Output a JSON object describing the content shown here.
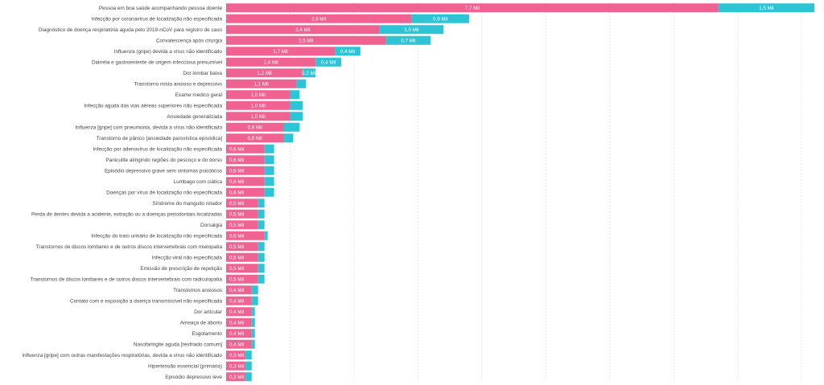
{
  "colors": {
    "series1": "#f06292",
    "series2": "#2ec4d6",
    "grid": "#e8e8e8",
    "label": "#444444"
  },
  "chart_data": {
    "type": "bar",
    "orientation": "horizontal",
    "stacked": true,
    "title": "",
    "xlabel": "",
    "ylabel": "",
    "grid": true,
    "xlim": [
      0,
      9.2
    ],
    "categories": [
      "Pessoa em boa saúde acompanhando pessoa doente",
      "Infecção por coronavírus de localização não especificada",
      "Diagnóstico de doença respiratória aguda pelo 2019-nCoV para registro de caso",
      "Convalescença após cirurgia",
      "Influenza (gripe) devida a vírus não identificado",
      "Diarréia e gastroenterite de origem infecciosa presumível",
      "Dor lombar baixa",
      "Transtorno misto ansioso e depressivo",
      "Exame médico geral",
      "Infecção aguda das vias aéreas superiores não especificada",
      "Ansiedade generalizada",
      "Influenza [gripe] com pneumonia, devida a vírus não identificado",
      "Transtorno de pânico [ansiedade paroxística episódica]",
      "Infecção por adenovírus de localização não especificada",
      "Paniculite atingindo regiões do pescoço e do dorso",
      "Episódio depressivo grave sem sintomas psicóticos",
      "Lumbago com ciática",
      "Doenças por vírus de localização não especificada",
      "Síndrome do manguito rotador",
      "Perda de dentes devida a acidente, extração ou a doenças periodontais localizadas",
      "Dorsalgia",
      "Infecção do trato urinário de localização não especificada",
      "Transtornos de discos lombares e de outros discos intervertebrais com mielopatia",
      "Infecção viral não especificada",
      "Emissão de prescrição de repetição",
      "Transtornos de discos lombares e de outros discos intervertebrais com radiculopatia",
      "Transtornos ansiosos",
      "Contato com e exposição a doença transmissível não especificada",
      "Dor articular",
      "Ameaça de aborto",
      "Esgotamento",
      "Nasofaringite aguda [resfriado comum]",
      "Influenza [gripe] com outras manifestações respiratórias, devida a vírus não identificado",
      "Hipertensão essencial (primária)",
      "Episódio depressivo leve"
    ],
    "series": [
      {
        "values": [
          7.7,
          2.9,
          2.4,
          2.5,
          1.7,
          1.4,
          1.2,
          1.1,
          1.0,
          1.0,
          1.0,
          0.9,
          0.9,
          0.6,
          0.6,
          0.6,
          0.6,
          0.6,
          0.5,
          0.5,
          0.5,
          0.6,
          0.5,
          0.5,
          0.5,
          0.5,
          0.4,
          0.4,
          0.4,
          0.4,
          0.4,
          0.4,
          0.3,
          0.3,
          0.3
        ],
        "labels": [
          "7,7 Mil",
          "2,9 Mil",
          "2,4 Mil",
          "2,5 Mil",
          "1,7 Mil",
          "1,4 Mil",
          "1,2 Mil",
          "1,1 Mil",
          "1,0 Mil",
          "1,0 Mil",
          "1,0 Mil",
          "0,9 Mil",
          "0,9 Mil",
          "0,6 Mil",
          "0,6 Mil",
          "0,6 Mil",
          "0,6 Mil",
          "0,6 Mil",
          "0,5 Mil",
          "0,5 Mil",
          "0,5 Mil",
          "0,6 Mil",
          "0,5 Mil",
          "0,5 Mil",
          "0,5 Mil",
          "0,5 Mil",
          "0,4 Mil",
          "0,4 Mil",
          "0,4 Mil",
          "0,4 Mil",
          "0,4 Mil",
          "0,4 Mil",
          "0,3 Mil",
          "0,3 Mil",
          "0,3 Mil"
        ]
      },
      {
        "values": [
          1.5,
          0.9,
          1.0,
          0.7,
          0.4,
          0.4,
          0.2,
          0.15,
          0.15,
          0.2,
          0.2,
          0.25,
          0.15,
          0.15,
          0.15,
          0.15,
          0.15,
          0.15,
          0.1,
          0.1,
          0.1,
          0.05,
          0.1,
          0.1,
          0.1,
          0.1,
          0.1,
          0.1,
          0.05,
          0.05,
          0.05,
          0.05,
          0.1,
          0.1,
          0.1
        ],
        "labels": [
          "1,5 Mil",
          "0,9 Mil",
          "1,0 Mil",
          "0,7 Mil",
          "0,4 Mil",
          "0,4 Mil",
          "0,2 Mil",
          "",
          "",
          "",
          "",
          "",
          "",
          "",
          "",
          "",
          "",
          "",
          "",
          "",
          "",
          "",
          "",
          "",
          "",
          "",
          "",
          "",
          "",
          "",
          "",
          "",
          "",
          "",
          ""
        ]
      }
    ]
  }
}
